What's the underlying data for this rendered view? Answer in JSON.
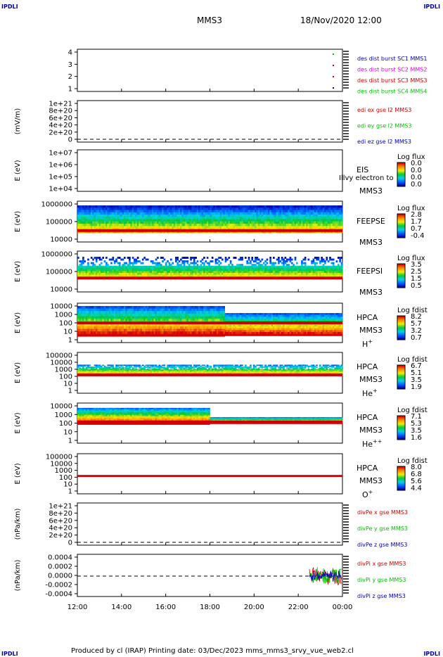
{
  "header": {
    "corner_left_top": "IPDLI",
    "corner_right_top": "IPDLI",
    "title": "MMS3",
    "datetime": "18/Nov/2020 12:00"
  },
  "footer": {
    "text": "Produced by cl (IRAP)   Printing date: 03/Dec/2023   mms_mms3_srvy_vue_web2.cl",
    "corner_left_bottom": "IPDLI",
    "corner_right_bottom": "IPDLI"
  },
  "colors": {
    "red": "#d00000",
    "green": "#00c000",
    "blue": "#0000c0",
    "magenta": "#e000e0",
    "spec_low": "#0000d0",
    "spec_mid": "#00c8c8",
    "spec_high": "#d00000"
  },
  "x_axis": {
    "ticks": [
      "12:00",
      "14:00",
      "16:00",
      "18:00",
      "20:00",
      "22:00",
      "00:00"
    ]
  },
  "chart_data": [
    {
      "type": "scatter",
      "ylabel": "",
      "yticks": [
        "1",
        "2",
        "3",
        "4"
      ],
      "legend": [
        {
          "text": "des dist burst SC1 MMS1",
          "color": "blue"
        },
        {
          "text": "des dist burst SC2 MMS2",
          "color": "magenta"
        },
        {
          "text": "des dist burst SC3 MMS3",
          "color": "red"
        },
        {
          "text": "des dist burst SC4 MMS4",
          "color": "green"
        }
      ]
    },
    {
      "type": "line",
      "ylabel": "(mV/m)",
      "yticks": [
        "0",
        "2e+20",
        "4e+20",
        "6e+20",
        "8e+20",
        "1e+21"
      ],
      "legend": [
        {
          "text": "edi ex gse l2 MMS3",
          "color": "red"
        },
        {
          "text": "edi ey gse l2 MMS3",
          "color": "green"
        },
        {
          "text": "edi ez gse l2 MMS3",
          "color": "blue"
        }
      ]
    },
    {
      "type": "heatmap",
      "ylabel": "E (eV)",
      "yticks": [
        "1e+04",
        "1e+05",
        "1e+06",
        "1e+07"
      ],
      "instrument": "EIS",
      "spacecraft": "MMS3",
      "overlay_text": "Illvy electron to",
      "colorbar_title": "Log flux",
      "colorbar_ticks": [
        "0.0",
        "0.0",
        "0.0",
        "0.0"
      ]
    },
    {
      "type": "heatmap",
      "ylabel": "E (eV)",
      "yticks": [
        "10000",
        "100000",
        "1000000"
      ],
      "instrument": "FEEPSE",
      "spacecraft": "MMS3",
      "colorbar_title": "Log flux",
      "colorbar_ticks": [
        "2.8",
        "1.7",
        "0.7",
        "-0.4"
      ]
    },
    {
      "type": "heatmap",
      "ylabel": "E (eV)",
      "yticks": [
        "10000",
        "100000",
        "1000000"
      ],
      "instrument": "FEEPSI",
      "spacecraft": "MMS3",
      "colorbar_title": "Log flux",
      "colorbar_ticks": [
        "3.5",
        "2.5",
        "1.5",
        "0.5"
      ]
    },
    {
      "type": "heatmap",
      "ylabel": "E (eV)",
      "yticks": [
        "1",
        "10",
        "100",
        "1000",
        "10000"
      ],
      "instrument": "HPCA",
      "spacecraft": "MMS3",
      "species": "H",
      "species_sup": "+",
      "colorbar_title": "Log fdist",
      "colorbar_ticks": [
        "8.2",
        "5.7",
        "3.2",
        "0.7"
      ]
    },
    {
      "type": "heatmap",
      "ylabel": "E (eV)",
      "yticks": [
        "1",
        "10",
        "100",
        "1000",
        "10000",
        "100000"
      ],
      "instrument": "HPCA",
      "spacecraft": "MMS3",
      "species": "He",
      "species_sup": "+",
      "colorbar_title": "Log fdist",
      "colorbar_ticks": [
        "6.7",
        "5.1",
        "3.5",
        "1.9"
      ]
    },
    {
      "type": "heatmap",
      "ylabel": "E (eV)",
      "yticks": [
        "1",
        "10",
        "100",
        "1000",
        "10000"
      ],
      "instrument": "HPCA",
      "spacecraft": "MMS3",
      "species": "He",
      "species_sup": "++",
      "colorbar_title": "Log fdist",
      "colorbar_ticks": [
        "7.1",
        "5.3",
        "3.5",
        "1.6"
      ]
    },
    {
      "type": "heatmap",
      "ylabel": "E (eV)",
      "yticks": [
        "1",
        "10",
        "100",
        "1000",
        "10000",
        "100000"
      ],
      "instrument": "HPCA",
      "spacecraft": "MMS3",
      "species": "O",
      "species_sup": "+",
      "colorbar_title": "Log fdist",
      "colorbar_ticks": [
        "8.0",
        "6.8",
        "5.6",
        "4.4"
      ]
    },
    {
      "type": "line",
      "ylabel": "(nPa/km)",
      "yticks": [
        "0",
        "2e+20",
        "4e+20",
        "6e+20",
        "8e+20",
        "1e+21"
      ],
      "legend": [
        {
          "text": "divPe x gse MMS3",
          "color": "red"
        },
        {
          "text": "divPe y gse MMS3",
          "color": "green"
        },
        {
          "text": "divPe z gse MMS3",
          "color": "blue"
        }
      ]
    },
    {
      "type": "line",
      "ylabel": "(nPa/km)",
      "yticks": [
        "-0.0004",
        "-0.0002",
        "0.0000",
        "0.0002",
        "0.0004"
      ],
      "legend": [
        {
          "text": "divPi x gse MMS3",
          "color": "red"
        },
        {
          "text": "divPi y gse MMS3",
          "color": "green"
        },
        {
          "text": "divPi z gse MMS3",
          "color": "blue"
        }
      ]
    }
  ]
}
